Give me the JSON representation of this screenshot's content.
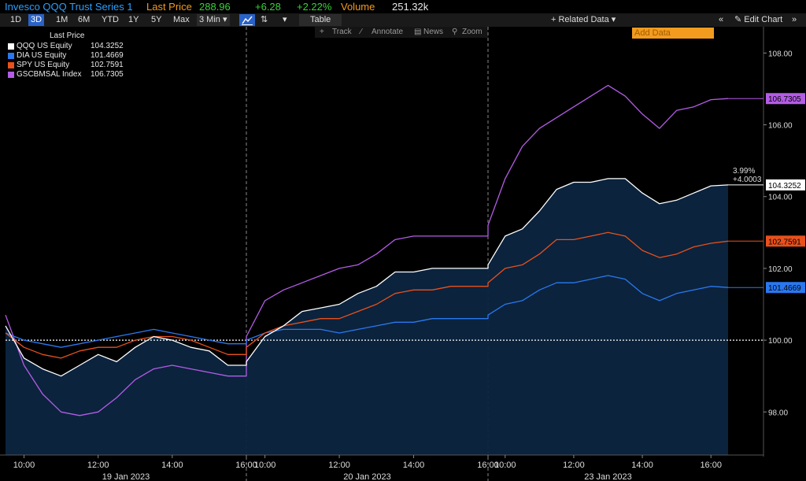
{
  "header": {
    "security": "Invesco QQQ Trust Series 1",
    "last_price_label": "Last Price",
    "last_price": "288.96",
    "change": "+6.28",
    "change_pct": "+2.22%",
    "volume_label": "Volume",
    "volume": "251.32k"
  },
  "toolbar": {
    "ranges": [
      "1D",
      "3D",
      "1M",
      "6M",
      "YTD",
      "1Y",
      "5Y",
      "Max"
    ],
    "active_range": "3D",
    "interval": "3 Min",
    "table_label": "Table",
    "related_data": "+ Related Data",
    "add_data_placeholder": "Add Data",
    "edit_chart": "Edit Chart"
  },
  "subtoolbar": {
    "track": "Track",
    "annotate": "Annotate",
    "news": "News",
    "zoom": "Zoom"
  },
  "colors": {
    "QQQ": "#ffffff",
    "DIA": "#2a78f0",
    "SPY": "#e8501c",
    "GSCBMSAL": "#b45ce6",
    "baseline": "#ffffff",
    "area": "#0c2540",
    "accent": "#2a62c9",
    "label_orange": "#f29b1f"
  },
  "chart_data": {
    "type": "line",
    "title": "",
    "legend_title": "Last Price",
    "xlabel": "",
    "ylabel": "",
    "ylim": [
      96.8,
      108.6
    ],
    "y_ticks": [
      98.0,
      100.0,
      102.0,
      104.0,
      106.0,
      108.0
    ],
    "x_ticks": [
      "10:00",
      "12:00",
      "14:00",
      "16:00",
      "10:00",
      "12:00",
      "14:00",
      "16:00",
      "10:00",
      "12:00",
      "14:00",
      "16:00"
    ],
    "x_tick_hours": [
      10,
      12,
      14,
      16,
      34,
      36,
      38,
      40,
      82,
      84,
      86,
      88
    ],
    "x_range_hours": [
      9.0,
      91.0
    ],
    "dates": [
      "19 Jan 2023",
      "20 Jan 2023",
      "23 Jan 2023"
    ],
    "date_center_hours": [
      13.0,
      37.0,
      85.0
    ],
    "session_breaks_hours": [
      16.0,
      40.0
    ],
    "baseline": 100.0,
    "legend_placement": "top-left",
    "series": [
      {
        "name": "QQQ US Equity",
        "last": "104.3252",
        "key": "QQQ",
        "filled": true,
        "points": [
          [
            9.5,
            100.4
          ],
          [
            10,
            99.5
          ],
          [
            10.5,
            99.2
          ],
          [
            11,
            99.0
          ],
          [
            11.5,
            99.3
          ],
          [
            12,
            99.6
          ],
          [
            12.5,
            99.4
          ],
          [
            13,
            99.8
          ],
          [
            13.5,
            100.1
          ],
          [
            14,
            100.0
          ],
          [
            14.5,
            99.8
          ],
          [
            15,
            99.7
          ],
          [
            15.5,
            99.3
          ],
          [
            16.0,
            99.3
          ],
          [
            33.5,
            99.4
          ],
          [
            34,
            100.1
          ],
          [
            34.5,
            100.4
          ],
          [
            35,
            100.8
          ],
          [
            35.5,
            100.9
          ],
          [
            36,
            101.0
          ],
          [
            36.5,
            101.3
          ],
          [
            37,
            101.5
          ],
          [
            37.5,
            101.9
          ],
          [
            38,
            101.9
          ],
          [
            38.5,
            102.0
          ],
          [
            39,
            102.0
          ],
          [
            39.5,
            102.0
          ],
          [
            40,
            102.0
          ],
          [
            81.5,
            102.1
          ],
          [
            82,
            102.9
          ],
          [
            82.5,
            103.1
          ],
          [
            83,
            103.6
          ],
          [
            83.5,
            104.2
          ],
          [
            84,
            104.4
          ],
          [
            84.5,
            104.4
          ],
          [
            85,
            104.5
          ],
          [
            85.5,
            104.5
          ],
          [
            86,
            104.1
          ],
          [
            86.5,
            103.8
          ],
          [
            87,
            103.9
          ],
          [
            87.5,
            104.1
          ],
          [
            88,
            104.3
          ],
          [
            88.5,
            104.3252
          ]
        ]
      },
      {
        "name": "DIA US Equity",
        "last": "101.4669",
        "key": "DIA",
        "filled": false,
        "points": [
          [
            9.5,
            100.2
          ],
          [
            10,
            100.0
          ],
          [
            10.5,
            99.9
          ],
          [
            11,
            99.8
          ],
          [
            11.5,
            99.9
          ],
          [
            12,
            100.0
          ],
          [
            12.5,
            100.1
          ],
          [
            13,
            100.2
          ],
          [
            13.5,
            100.3
          ],
          [
            14,
            100.2
          ],
          [
            14.5,
            100.1
          ],
          [
            15,
            100.0
          ],
          [
            15.5,
            99.9
          ],
          [
            16.0,
            99.9
          ],
          [
            33.5,
            100.0
          ],
          [
            34,
            100.2
          ],
          [
            34.5,
            100.3
          ],
          [
            35,
            100.3
          ],
          [
            35.5,
            100.3
          ],
          [
            36,
            100.2
          ],
          [
            36.5,
            100.3
          ],
          [
            37,
            100.4
          ],
          [
            37.5,
            100.5
          ],
          [
            38,
            100.5
          ],
          [
            38.5,
            100.6
          ],
          [
            39,
            100.6
          ],
          [
            39.5,
            100.6
          ],
          [
            40,
            100.6
          ],
          [
            81.5,
            100.7
          ],
          [
            82,
            101.0
          ],
          [
            82.5,
            101.1
          ],
          [
            83,
            101.4
          ],
          [
            83.5,
            101.6
          ],
          [
            84,
            101.6
          ],
          [
            84.5,
            101.7
          ],
          [
            85,
            101.8
          ],
          [
            85.5,
            101.7
          ],
          [
            86,
            101.3
          ],
          [
            86.5,
            101.1
          ],
          [
            87,
            101.3
          ],
          [
            87.5,
            101.4
          ],
          [
            88,
            101.5
          ],
          [
            88.5,
            101.4669
          ]
        ]
      },
      {
        "name": "SPY US Equity",
        "last": "102.7591",
        "key": "SPY",
        "filled": false,
        "points": [
          [
            9.5,
            100.2
          ],
          [
            10,
            99.8
          ],
          [
            10.5,
            99.6
          ],
          [
            11,
            99.5
          ],
          [
            11.5,
            99.7
          ],
          [
            12,
            99.8
          ],
          [
            12.5,
            99.8
          ],
          [
            13,
            100.0
          ],
          [
            13.5,
            100.1
          ],
          [
            14,
            100.1
          ],
          [
            14.5,
            100.0
          ],
          [
            15,
            99.8
          ],
          [
            15.5,
            99.6
          ],
          [
            16.0,
            99.6
          ],
          [
            33.5,
            99.8
          ],
          [
            34,
            100.2
          ],
          [
            34.5,
            100.4
          ],
          [
            35,
            100.5
          ],
          [
            35.5,
            100.6
          ],
          [
            36,
            100.6
          ],
          [
            36.5,
            100.8
          ],
          [
            37,
            101.0
          ],
          [
            37.5,
            101.3
          ],
          [
            38,
            101.4
          ],
          [
            38.5,
            101.4
          ],
          [
            39,
            101.5
          ],
          [
            39.5,
            101.5
          ],
          [
            40,
            101.5
          ],
          [
            81.5,
            101.6
          ],
          [
            82,
            102.0
          ],
          [
            82.5,
            102.1
          ],
          [
            83,
            102.4
          ],
          [
            83.5,
            102.8
          ],
          [
            84,
            102.8
          ],
          [
            84.5,
            102.9
          ],
          [
            85,
            103.0
          ],
          [
            85.5,
            102.9
          ],
          [
            86,
            102.5
          ],
          [
            86.5,
            102.3
          ],
          [
            87,
            102.4
          ],
          [
            87.5,
            102.6
          ],
          [
            88,
            102.7
          ],
          [
            88.5,
            102.7591
          ]
        ]
      },
      {
        "name": "GSCBMSAL Index",
        "last": "106.7305",
        "key": "GSCBMSAL",
        "filled": false,
        "points": [
          [
            9.5,
            100.7
          ],
          [
            10,
            99.3
          ],
          [
            10.5,
            98.5
          ],
          [
            11,
            98.0
          ],
          [
            11.5,
            97.9
          ],
          [
            12,
            98.0
          ],
          [
            12.5,
            98.4
          ],
          [
            13,
            98.9
          ],
          [
            13.5,
            99.2
          ],
          [
            14,
            99.3
          ],
          [
            14.5,
            99.2
          ],
          [
            15,
            99.1
          ],
          [
            15.5,
            99.0
          ],
          [
            16.0,
            99.0
          ],
          [
            33.5,
            100.1
          ],
          [
            34,
            101.1
          ],
          [
            34.5,
            101.4
          ],
          [
            35,
            101.6
          ],
          [
            35.5,
            101.8
          ],
          [
            36,
            102.0
          ],
          [
            36.5,
            102.1
          ],
          [
            37,
            102.4
          ],
          [
            37.5,
            102.8
          ],
          [
            38,
            102.9
          ],
          [
            38.5,
            102.9
          ],
          [
            39,
            102.9
          ],
          [
            39.5,
            102.9
          ],
          [
            40,
            102.9
          ],
          [
            81.5,
            103.2
          ],
          [
            82,
            104.5
          ],
          [
            82.5,
            105.4
          ],
          [
            83,
            105.9
          ],
          [
            83.5,
            106.2
          ],
          [
            84,
            106.5
          ],
          [
            84.5,
            106.8
          ],
          [
            85,
            107.1
          ],
          [
            85.5,
            106.8
          ],
          [
            86,
            106.3
          ],
          [
            86.5,
            105.9
          ],
          [
            87,
            106.4
          ],
          [
            87.5,
            106.5
          ],
          [
            88,
            106.7
          ],
          [
            88.5,
            106.7305
          ]
        ]
      }
    ],
    "annotation": {
      "pct": "3.99%",
      "change": "+4.0003"
    }
  }
}
